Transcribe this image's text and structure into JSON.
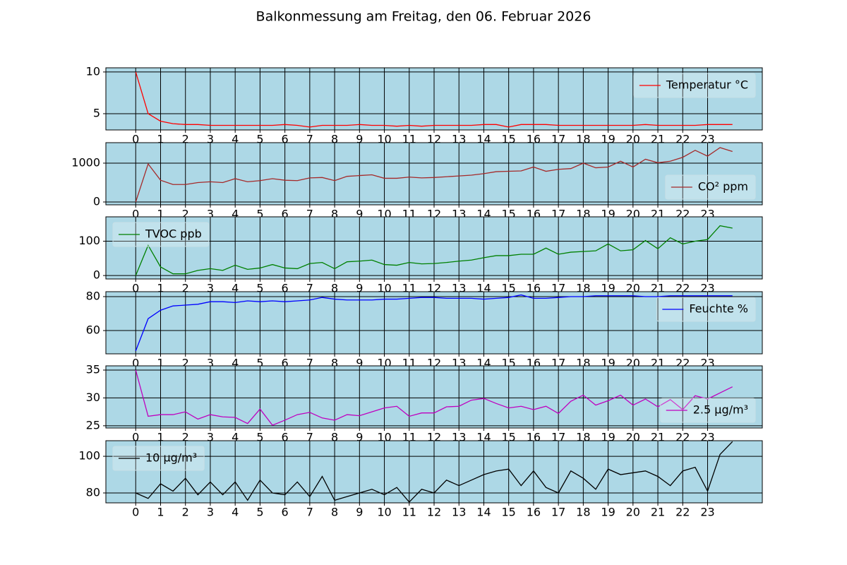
{
  "title": "Balkonmessung am Freitag, den 06. Februar 2026",
  "chart_data": [
    {
      "type": "line",
      "legend": "upper right",
      "grid": true,
      "xlim": [
        -1.2,
        25.2
      ],
      "ylim": [
        3.05,
        10.5
      ],
      "yticks": [
        5,
        10
      ],
      "xticks": [
        0,
        1,
        2,
        3,
        4,
        5,
        6,
        7,
        8,
        9,
        10,
        11,
        12,
        13,
        14,
        15,
        16,
        17,
        18,
        19,
        20,
        21,
        22,
        23
      ],
      "x": [
        0,
        0.5,
        1,
        1.5,
        2,
        2.5,
        3,
        3.5,
        4,
        4.5,
        5,
        5.5,
        6,
        6.5,
        7,
        7.5,
        8,
        8.5,
        9,
        9.5,
        10,
        10.5,
        11,
        11.5,
        12,
        12.5,
        13,
        13.5,
        14,
        14.5,
        15,
        15.5,
        16,
        16.5,
        17,
        17.5,
        18,
        18.5,
        19,
        19.5,
        20,
        20.5,
        21,
        21.5,
        22,
        22.5,
        23,
        23.5,
        24
      ],
      "series": [
        {
          "name": "Temperatur °C",
          "color": "#ff0000",
          "values": [
            10,
            5,
            4.1,
            3.8,
            3.7,
            3.7,
            3.6,
            3.6,
            3.6,
            3.6,
            3.6,
            3.6,
            3.7,
            3.6,
            3.4,
            3.6,
            3.6,
            3.6,
            3.7,
            3.6,
            3.6,
            3.5,
            3.6,
            3.5,
            3.6,
            3.6,
            3.6,
            3.6,
            3.7,
            3.7,
            3.4,
            3.7,
            3.7,
            3.7,
            3.6,
            3.6,
            3.6,
            3.6,
            3.6,
            3.6,
            3.6,
            3.7,
            3.6,
            3.6,
            3.6,
            3.6,
            3.7,
            3.7,
            3.7
          ]
        }
      ]
    },
    {
      "type": "line",
      "legend": "lower right",
      "grid": true,
      "xlim": [
        -1.2,
        25.2
      ],
      "ylim": [
        -73,
        1527
      ],
      "yticks": [
        0,
        1000
      ],
      "xticks": [
        0,
        1,
        2,
        3,
        4,
        5,
        6,
        7,
        8,
        9,
        10,
        11,
        12,
        13,
        14,
        15,
        16,
        17,
        18,
        19,
        20,
        21,
        22,
        23
      ],
      "x": [
        0,
        0.5,
        1,
        1.5,
        2,
        2.5,
        3,
        3.5,
        4,
        4.5,
        5,
        5.5,
        6,
        6.5,
        7,
        7.5,
        8,
        8.5,
        9,
        9.5,
        10,
        10.5,
        11,
        11.5,
        12,
        12.5,
        13,
        13.5,
        14,
        14.5,
        15,
        15.5,
        16,
        16.5,
        17,
        17.5,
        18,
        18.5,
        19,
        19.5,
        20,
        20.5,
        21,
        21.5,
        22,
        22.5,
        23,
        23.5,
        24
      ],
      "series": [
        {
          "name": "CO² ppm",
          "color": "#a52a2a",
          "values": [
            0,
            980,
            560,
            450,
            450,
            500,
            520,
            500,
            600,
            520,
            550,
            600,
            560,
            550,
            620,
            630,
            550,
            660,
            680,
            700,
            610,
            610,
            640,
            620,
            630,
            650,
            670,
            690,
            730,
            780,
            790,
            800,
            900,
            790,
            840,
            860,
            1000,
            880,
            900,
            1050,
            900,
            1100,
            1010,
            1050,
            1150,
            1330,
            1180,
            1400,
            1300
          ]
        }
      ]
    },
    {
      "type": "line",
      "legend": "upper left",
      "grid": true,
      "xlim": [
        -1.2,
        25.2
      ],
      "ylim": [
        -10,
        171
      ],
      "yticks": [
        0,
        100
      ],
      "xticks": [
        0,
        1,
        2,
        3,
        4,
        5,
        6,
        7,
        8,
        9,
        10,
        11,
        12,
        13,
        14,
        15,
        16,
        17,
        18,
        19,
        20,
        21,
        22,
        23
      ],
      "x": [
        0,
        0.5,
        1,
        1.5,
        2,
        2.5,
        3,
        3.5,
        4,
        4.5,
        5,
        5.5,
        6,
        6.5,
        7,
        7.5,
        8,
        8.5,
        9,
        9.5,
        10,
        10.5,
        11,
        11.5,
        12,
        12.5,
        13,
        13.5,
        14,
        14.5,
        15,
        15.5,
        16,
        16.5,
        17,
        17.5,
        18,
        18.5,
        19,
        19.5,
        20,
        20.5,
        21,
        21.5,
        22,
        22.5,
        23,
        23.5,
        24
      ],
      "series": [
        {
          "name": "TVOC ppb",
          "color": "#008000",
          "values": [
            0,
            88,
            25,
            5,
            5,
            15,
            20,
            15,
            30,
            18,
            22,
            32,
            22,
            20,
            35,
            38,
            20,
            40,
            42,
            45,
            32,
            30,
            38,
            34,
            35,
            38,
            42,
            45,
            52,
            58,
            58,
            62,
            62,
            80,
            62,
            68,
            70,
            72,
            92,
            72,
            75,
            102,
            78,
            110,
            92,
            100,
            105,
            145,
            138
          ]
        }
      ]
    },
    {
      "type": "line",
      "legend": "upper right",
      "grid": true,
      "xlim": [
        -1.2,
        25.2
      ],
      "ylim": [
        46.3,
        82.9
      ],
      "yticks": [
        60,
        80
      ],
      "xticks": [
        0,
        1,
        2,
        3,
        4,
        5,
        6,
        7,
        8,
        9,
        10,
        11,
        12,
        13,
        14,
        15,
        16,
        17,
        18,
        19,
        20,
        21,
        22,
        23
      ],
      "x": [
        0,
        0.5,
        1,
        1.5,
        2,
        2.5,
        3,
        3.5,
        4,
        4.5,
        5,
        5.5,
        6,
        6.5,
        7,
        7.5,
        8,
        8.5,
        9,
        9.5,
        10,
        10.5,
        11,
        11.5,
        12,
        12.5,
        13,
        13.5,
        14,
        14.5,
        15,
        15.5,
        16,
        16.5,
        17,
        17.5,
        18,
        18.5,
        19,
        19.5,
        20,
        20.5,
        21,
        21.5,
        22,
        22.5,
        23,
        23.5,
        24
      ],
      "series": [
        {
          "name": "Feuchte %",
          "color": "#0000ff",
          "values": [
            48,
            67,
            72,
            74.5,
            75,
            75.5,
            77,
            77,
            76.5,
            77.5,
            77,
            77.5,
            77,
            77.5,
            78,
            79.5,
            78.5,
            78,
            78,
            78,
            78.5,
            78.5,
            79,
            79.5,
            79.5,
            79,
            79,
            79,
            78.5,
            79,
            79.5,
            81,
            79,
            79,
            79.5,
            80,
            80,
            80.5,
            80.5,
            80.5,
            80.5,
            80,
            80,
            80.5,
            80.5,
            80.5,
            80.5,
            80.5,
            80.5
          ]
        }
      ]
    },
    {
      "type": "line",
      "legend": "lower right",
      "grid": true,
      "xlim": [
        -1.2,
        25.2
      ],
      "ylim": [
        24.6,
        35.76
      ],
      "yticks": [
        25,
        30,
        35
      ],
      "xticks": [
        0,
        1,
        2,
        3,
        4,
        5,
        6,
        7,
        8,
        9,
        10,
        11,
        12,
        13,
        14,
        15,
        16,
        17,
        18,
        19,
        20,
        21,
        22,
        23
      ],
      "x": [
        0,
        0.5,
        1,
        1.5,
        2,
        2.5,
        3,
        3.5,
        4,
        4.5,
        5,
        5.5,
        6,
        6.5,
        7,
        7.5,
        8,
        8.5,
        9,
        9.5,
        10,
        10.5,
        11,
        11.5,
        12,
        12.5,
        13,
        13.5,
        14,
        14.5,
        15,
        15.5,
        16,
        16.5,
        17,
        17.5,
        18,
        18.5,
        19,
        19.5,
        20,
        20.5,
        21,
        21.5,
        22,
        22.5,
        23,
        23.5,
        24
      ],
      "series": [
        {
          "name": "2.5 µg/m³",
          "color": "#bf00bf",
          "values": [
            35,
            26.7,
            27,
            27,
            27.5,
            26.2,
            27,
            26.6,
            26.5,
            25.4,
            28,
            25.1,
            26,
            27,
            27.4,
            26.4,
            26,
            27,
            26.8,
            27.5,
            28.2,
            28.5,
            26.7,
            27.3,
            27.3,
            28.4,
            28.5,
            29.6,
            29.9,
            29,
            28.2,
            28.5,
            27.9,
            28.5,
            27.2,
            29.4,
            30.5,
            28.7,
            29.5,
            30.5,
            28.7,
            29.8,
            28.4,
            29.7,
            27.9,
            30.4,
            29.8,
            30.9,
            32
          ]
        }
      ]
    },
    {
      "type": "line",
      "legend": "upper left",
      "grid": true,
      "xlim": [
        -1.2,
        25.2
      ],
      "ylim": [
        74.6,
        108.5
      ],
      "yticks": [
        80,
        100
      ],
      "xticks": [
        0,
        1,
        2,
        3,
        4,
        5,
        6,
        7,
        8,
        9,
        10,
        11,
        12,
        13,
        14,
        15,
        16,
        17,
        18,
        19,
        20,
        21,
        22,
        23
      ],
      "x": [
        0,
        0.5,
        1,
        1.5,
        2,
        2.5,
        3,
        3.5,
        4,
        4.5,
        5,
        5.5,
        6,
        6.5,
        7,
        7.5,
        8,
        8.5,
        9,
        9.5,
        10,
        10.5,
        11,
        11.5,
        12,
        12.5,
        13,
        13.5,
        14,
        14.5,
        15,
        15.5,
        16,
        16.5,
        17,
        17.5,
        18,
        18.5,
        19,
        19.5,
        20,
        20.5,
        21,
        21.5,
        22,
        22.5,
        23,
        23.5,
        24
      ],
      "series": [
        {
          "name": "10 µg/m³",
          "color": "#000000",
          "values": [
            80,
            77,
            85,
            81,
            88,
            79,
            86,
            79,
            86,
            76,
            87,
            80,
            79,
            86,
            78,
            89,
            76,
            78,
            80,
            82,
            79,
            83,
            75,
            82,
            80,
            87,
            84,
            87,
            90,
            92,
            93,
            84,
            92,
            83,
            80,
            92,
            88,
            82,
            93,
            90,
            91,
            92,
            89,
            84,
            92,
            94,
            81,
            101,
            108
          ]
        }
      ]
    }
  ]
}
